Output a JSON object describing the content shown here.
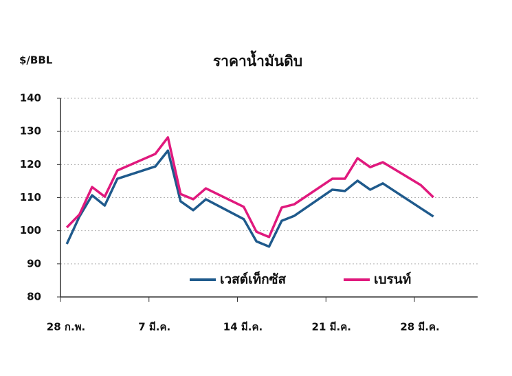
{
  "chart_data": {
    "type": "line",
    "title": "ราคาน้ำมันดิบ",
    "y_label": "$/BBL",
    "x": [
      0.5,
      1.5,
      2.5,
      3.5,
      4.5,
      7.5,
      8.5,
      9.5,
      10.5,
      11.5,
      14.5,
      15.5,
      16.5,
      17.5,
      18.5,
      21.5,
      22.5,
      23.5,
      24.5,
      25.5,
      28.5,
      29.5
    ],
    "series": [
      {
        "name": "เวสต์เท็กซัส",
        "color": "#1f5a8c",
        "values": [
          96.0,
          104.3,
          110.7,
          107.6,
          115.7,
          119.4,
          124.2,
          108.9,
          106.2,
          109.5,
          103.5,
          96.8,
          95.2,
          103.0,
          104.5,
          112.4,
          112.0,
          115.1,
          112.4,
          114.3,
          106.8,
          104.3
        ]
      },
      {
        "name": "เบรนท์",
        "color": "#e0197d",
        "values": [
          101.0,
          104.9,
          113.2,
          110.3,
          118.2,
          123.2,
          128.2,
          111.1,
          109.5,
          112.8,
          107.2,
          99.7,
          98.1,
          107.0,
          108.0,
          115.7,
          115.7,
          121.9,
          119.2,
          120.7,
          113.8,
          110.1
        ]
      }
    ],
    "xlim": [
      0,
      33
    ],
    "xticks": [
      {
        "value": 0,
        "label": "28 ก.พ."
      },
      {
        "value": 7,
        "label": "7 มี.ค."
      },
      {
        "value": 14,
        "label": "14 มี.ค."
      },
      {
        "value": 21,
        "label": "21 มี.ค."
      },
      {
        "value": 28,
        "label": "28 มี.ค."
      }
    ],
    "ylim": [
      80,
      140
    ],
    "yticks": [
      80,
      90,
      100,
      110,
      120,
      130,
      140
    ],
    "grid": true
  }
}
